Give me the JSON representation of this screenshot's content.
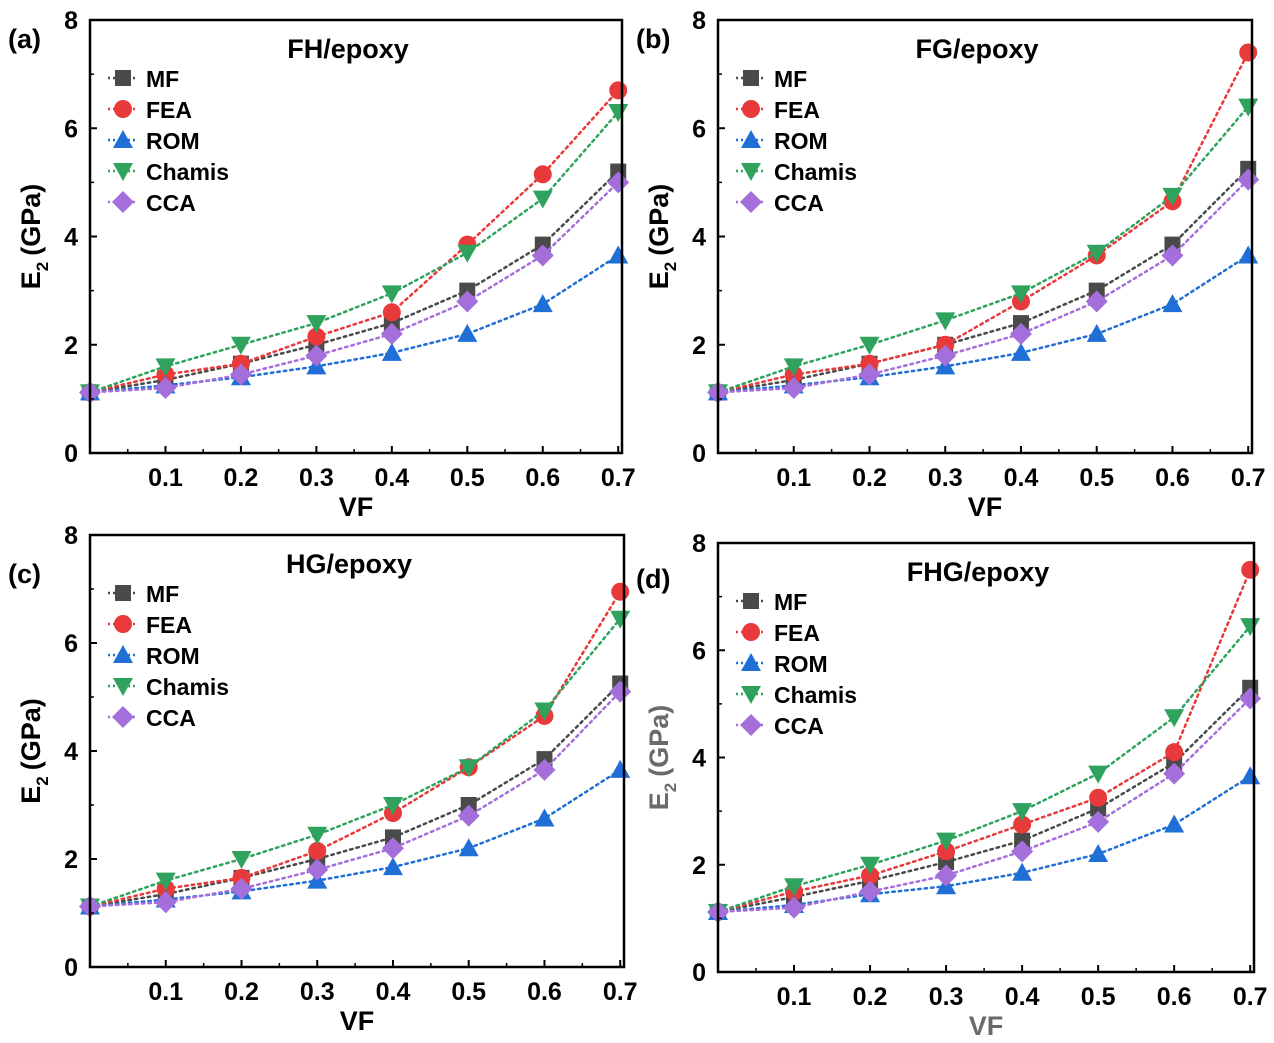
{
  "chart_data": [
    {
      "type": "line",
      "panel_label": "(a)",
      "title": "FH/epoxy",
      "xlabel": "VF",
      "ylabel": "E",
      "ylabel_sub": "2",
      "ylabel_unit": "(GPa)",
      "xlim": [
        0,
        0.705
      ],
      "ylim": [
        0,
        8
      ],
      "xticks": [
        0.1,
        0.2,
        0.3,
        0.4,
        0.5,
        0.6,
        0.7
      ],
      "yticks": [
        0,
        2,
        4,
        6,
        8
      ],
      "x": [
        0,
        0.1,
        0.2,
        0.3,
        0.4,
        0.5,
        0.6,
        0.7
      ],
      "legend_position": "top-left",
      "grid": false,
      "series": [
        {
          "name": "MF",
          "values": [
            1.12,
            1.35,
            1.65,
            2.0,
            2.4,
            3.0,
            3.85,
            5.2
          ]
        },
        {
          "name": "FEA",
          "values": [
            1.12,
            1.45,
            1.65,
            2.15,
            2.6,
            3.85,
            5.15,
            6.7
          ]
        },
        {
          "name": "ROM",
          "values": [
            1.12,
            1.25,
            1.4,
            1.6,
            1.85,
            2.2,
            2.75,
            3.65
          ]
        },
        {
          "name": "Chamis",
          "values": [
            1.12,
            1.6,
            2.0,
            2.4,
            2.95,
            3.7,
            4.7,
            6.3
          ]
        },
        {
          "name": "CCA",
          "values": [
            1.12,
            1.2,
            1.45,
            1.8,
            2.2,
            2.8,
            3.65,
            5.0
          ]
        }
      ]
    },
    {
      "type": "line",
      "panel_label": "(b)",
      "title": "FG/epoxy",
      "xlabel": "VF",
      "ylabel": "E",
      "ylabel_sub": "2",
      "ylabel_unit": "(GPa)",
      "xlim": [
        0,
        0.705
      ],
      "ylim": [
        0,
        8
      ],
      "xticks": [
        0.1,
        0.2,
        0.3,
        0.4,
        0.5,
        0.6,
        0.7
      ],
      "yticks": [
        0,
        2,
        4,
        6,
        8
      ],
      "x": [
        0,
        0.1,
        0.2,
        0.3,
        0.4,
        0.5,
        0.6,
        0.7
      ],
      "legend_position": "top-left",
      "grid": false,
      "series": [
        {
          "name": "MF",
          "values": [
            1.12,
            1.35,
            1.65,
            2.0,
            2.4,
            3.0,
            3.85,
            5.25
          ]
        },
        {
          "name": "FEA",
          "values": [
            1.12,
            1.45,
            1.65,
            2.0,
            2.8,
            3.65,
            4.65,
            7.4
          ]
        },
        {
          "name": "ROM",
          "values": [
            1.12,
            1.25,
            1.4,
            1.6,
            1.85,
            2.2,
            2.75,
            3.65
          ]
        },
        {
          "name": "Chamis",
          "values": [
            1.12,
            1.6,
            2.0,
            2.45,
            2.95,
            3.7,
            4.75,
            6.4
          ]
        },
        {
          "name": "CCA",
          "values": [
            1.12,
            1.2,
            1.45,
            1.8,
            2.2,
            2.8,
            3.65,
            5.05
          ]
        }
      ]
    },
    {
      "type": "line",
      "panel_label": "(c)",
      "title": "HG/epoxy",
      "xlabel": "VF",
      "ylabel": "E",
      "ylabel_sub": "2",
      "ylabel_unit": "(GPa)",
      "xlim": [
        0,
        0.705
      ],
      "ylim": [
        0,
        8
      ],
      "xticks": [
        0.1,
        0.2,
        0.3,
        0.4,
        0.5,
        0.6,
        0.7
      ],
      "yticks": [
        0,
        2,
        4,
        6,
        8
      ],
      "x": [
        0,
        0.1,
        0.2,
        0.3,
        0.4,
        0.5,
        0.6,
        0.7
      ],
      "legend_position": "top-left",
      "grid": false,
      "series": [
        {
          "name": "MF",
          "values": [
            1.12,
            1.35,
            1.65,
            2.0,
            2.4,
            3.0,
            3.85,
            5.25
          ]
        },
        {
          "name": "FEA",
          "values": [
            1.12,
            1.45,
            1.65,
            2.15,
            2.85,
            3.7,
            4.65,
            6.95
          ]
        },
        {
          "name": "ROM",
          "values": [
            1.12,
            1.25,
            1.4,
            1.6,
            1.85,
            2.2,
            2.75,
            3.65
          ]
        },
        {
          "name": "Chamis",
          "values": [
            1.12,
            1.6,
            2.0,
            2.45,
            3.0,
            3.7,
            4.75,
            6.45
          ]
        },
        {
          "name": "CCA",
          "values": [
            1.12,
            1.2,
            1.45,
            1.8,
            2.2,
            2.8,
            3.65,
            5.1
          ]
        }
      ]
    },
    {
      "type": "line",
      "panel_label": "(d)",
      "title": "FHG/epoxy",
      "xlabel": "VF",
      "ylabel": "E",
      "ylabel_sub": "2",
      "ylabel_unit": "(GPa)",
      "xlim": [
        0,
        0.705
      ],
      "ylim": [
        0,
        8
      ],
      "xticks": [
        0.1,
        0.2,
        0.3,
        0.4,
        0.5,
        0.6,
        0.7
      ],
      "yticks": [
        0,
        2,
        4,
        6,
        8
      ],
      "x": [
        0,
        0.1,
        0.2,
        0.3,
        0.4,
        0.5,
        0.6,
        0.7
      ],
      "legend_position": "top-left",
      "grid": false,
      "series": [
        {
          "name": "MF",
          "values": [
            1.12,
            1.4,
            1.7,
            2.05,
            2.45,
            3.05,
            3.9,
            5.3
          ]
        },
        {
          "name": "FEA",
          "values": [
            1.12,
            1.5,
            1.8,
            2.25,
            2.75,
            3.25,
            4.1,
            7.5
          ]
        },
        {
          "name": "ROM",
          "values": [
            1.12,
            1.25,
            1.45,
            1.6,
            1.85,
            2.2,
            2.75,
            3.65
          ]
        },
        {
          "name": "Chamis",
          "values": [
            1.12,
            1.6,
            2.0,
            2.45,
            3.0,
            3.7,
            4.75,
            6.45
          ]
        },
        {
          "name": "CCA",
          "values": [
            1.12,
            1.2,
            1.5,
            1.8,
            2.25,
            2.8,
            3.7,
            5.1
          ]
        }
      ]
    }
  ],
  "colors": {
    "MF": "#4a4a4a",
    "FEA": "#e83a3a",
    "ROM": "#1f6fd6",
    "Chamis": "#2fa35e",
    "CCA": "#a56fdb",
    "axis": "#000000",
    "panel_d_label": "#6a6a6a"
  }
}
